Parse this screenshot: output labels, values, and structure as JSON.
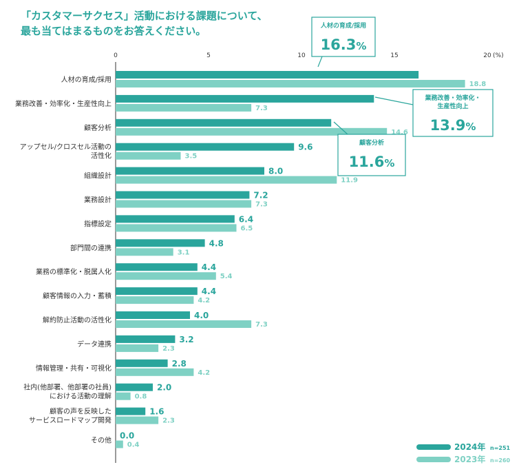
{
  "chart_data": {
    "type": "bar",
    "orientation": "horizontal",
    "title_lines": [
      "「カスタマーサクセス」活動における課題について、",
      "最も当てはまるものをお答えください。"
    ],
    "x_ticks": [
      "0",
      "5",
      "10",
      "15",
      "20"
    ],
    "x_unit": "(%)",
    "xlim": [
      0,
      20
    ],
    "categories": [
      [
        "人材の育成/採用"
      ],
      [
        "業務改善・効率化・生産性向上"
      ],
      [
        "顧客分析"
      ],
      [
        "アップセル/クロスセル活動の",
        "活性化"
      ],
      [
        "組織設計"
      ],
      [
        "業務設計"
      ],
      [
        "指標設定"
      ],
      [
        "部門間の連携"
      ],
      [
        "業務の標準化・脱属人化"
      ],
      [
        "顧客情報の入力・蓄積"
      ],
      [
        "解約防止活動の活性化"
      ],
      [
        "データ連携"
      ],
      [
        "情報管理・共有・可視化"
      ],
      [
        "社内(他部署、他部署の社員)",
        "における活動の理解"
      ],
      [
        "顧客の声を反映した",
        "サービスロードマップ開発"
      ],
      [
        "その他"
      ]
    ],
    "series": [
      {
        "name": "2024年",
        "n": "n=251",
        "color": "#2aa59c",
        "values": [
          16.3,
          13.9,
          11.6,
          9.6,
          8.0,
          7.2,
          6.4,
          4.8,
          4.4,
          4.4,
          4.0,
          3.2,
          2.8,
          2.0,
          1.6,
          0.0
        ],
        "labels": [
          "",
          "",
          "",
          "9.6",
          "8.0",
          "7.2",
          "6.4",
          "4.8",
          "4.4",
          "4.4",
          "4.0",
          "3.2",
          "2.8",
          "2.0",
          "1.6",
          "0.0"
        ]
      },
      {
        "name": "2023年",
        "n": "n=260",
        "color": "#7fd1c4",
        "values": [
          18.8,
          7.3,
          14.6,
          3.5,
          11.9,
          7.3,
          6.5,
          3.1,
          5.4,
          4.2,
          7.3,
          2.3,
          4.2,
          0.8,
          2.3,
          0.4
        ],
        "labels": [
          "18.8",
          "7.3",
          "14.6",
          "3.5",
          "11.9",
          "7.3",
          "6.5",
          "3.1",
          "5.4",
          "4.2",
          "7.3",
          "2.3",
          "4.2",
          "0.8",
          "2.3",
          "0.4"
        ]
      }
    ],
    "callouts": [
      {
        "category_index": 0,
        "label_lines": [
          "人材の育成/採用"
        ],
        "value": "16.3",
        "unit": "%"
      },
      {
        "category_index": 1,
        "label_lines": [
          "業務改善・効率化・",
          "生産性向上"
        ],
        "value": "13.9",
        "unit": "%"
      },
      {
        "category_index": 2,
        "label_lines": [
          "顧客分析"
        ],
        "value": "11.6",
        "unit": "%"
      }
    ],
    "grid": false,
    "legend_position": "bottom-right"
  }
}
